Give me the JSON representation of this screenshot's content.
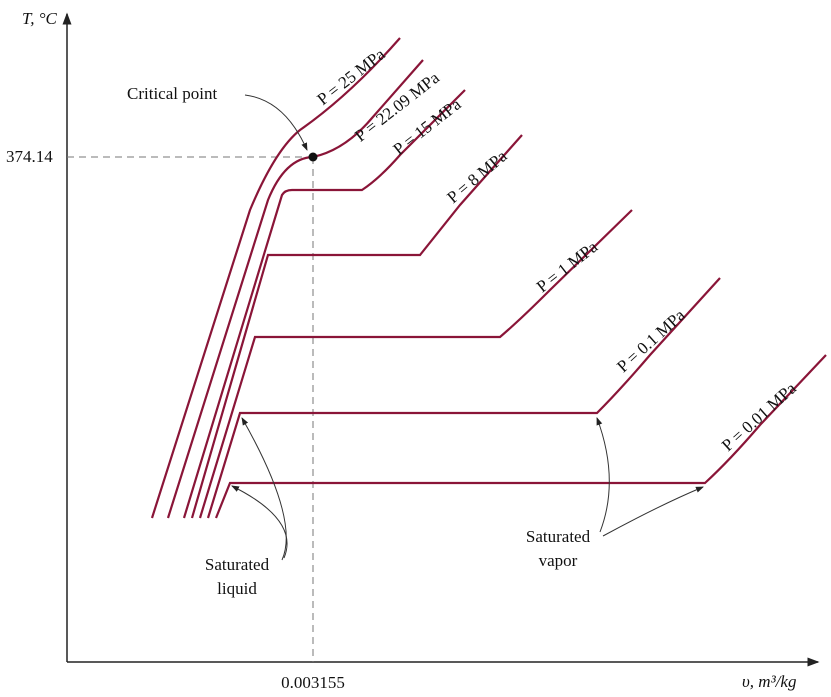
{
  "axes": {
    "y_label": "T, °C",
    "x_label": "υ, m³/kg"
  },
  "critical_point": {
    "label": "Critical point",
    "temperature": "374.14",
    "volume": "0.003155"
  },
  "isobars": [
    "P = 25 MPa",
    "P = 22.09 MPa",
    "P = 15 MPa",
    "P = 8 MPa",
    "P = 1 MPa",
    "P = 0.1 MPa",
    "P = 0.01 MPa"
  ],
  "annotations": {
    "saturated_liquid": [
      "Saturated",
      "liquid"
    ],
    "saturated_vapor": [
      "Saturated",
      "vapor"
    ]
  }
}
